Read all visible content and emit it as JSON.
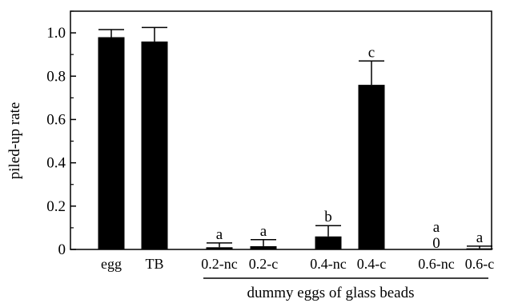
{
  "chart_data": {
    "type": "bar",
    "ylabel": "piled-up rate",
    "ylim": [
      0,
      1.1
    ],
    "yticks": [
      "0",
      "0.2",
      "0.4",
      "0.6",
      "0.8",
      "1.0"
    ],
    "ytick_values": [
      0,
      0.2,
      0.4,
      0.6,
      0.8,
      1.0
    ],
    "grid": false,
    "categories": [
      "egg",
      "TB",
      "0.2-nc",
      "0.2-c",
      "0.4-nc",
      "0.4-c",
      "0.6-nc",
      "0.6-c"
    ],
    "values": [
      0.98,
      0.96,
      0.01,
      0.015,
      0.06,
      0.76,
      0,
      0.005
    ],
    "errors": [
      0.035,
      0.065,
      0.02,
      0.03,
      0.05,
      0.11,
      0,
      0.01
    ],
    "significance": [
      "",
      "",
      "a",
      "a",
      "b",
      "c",
      "a",
      "a"
    ],
    "value_labels": [
      "",
      "",
      "",
      "",
      "",
      "",
      "0",
      ""
    ],
    "group_label": "dummy eggs of glass beads",
    "bar_color": "#000000"
  }
}
